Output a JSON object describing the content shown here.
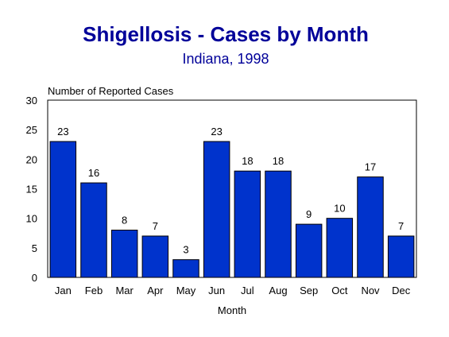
{
  "chart_data": {
    "type": "bar",
    "title": "Shigellosis - Cases by Month",
    "subtitle": "Indiana, 1998",
    "xlabel": "Month",
    "ylabel": "Number of Reported Cases",
    "categories": [
      "Jan",
      "Feb",
      "Mar",
      "Apr",
      "May",
      "Jun",
      "Jul",
      "Aug",
      "Sep",
      "Oct",
      "Nov",
      "Dec"
    ],
    "values": [
      23,
      16,
      8,
      7,
      3,
      23,
      18,
      18,
      9,
      10,
      17,
      7
    ],
    "ylim": [
      0,
      30
    ],
    "yticks": [
      0,
      5,
      10,
      15,
      20,
      25,
      30
    ],
    "grid": false,
    "legend": "none",
    "bar_color": "#0033cc",
    "title_color": "#000099"
  }
}
